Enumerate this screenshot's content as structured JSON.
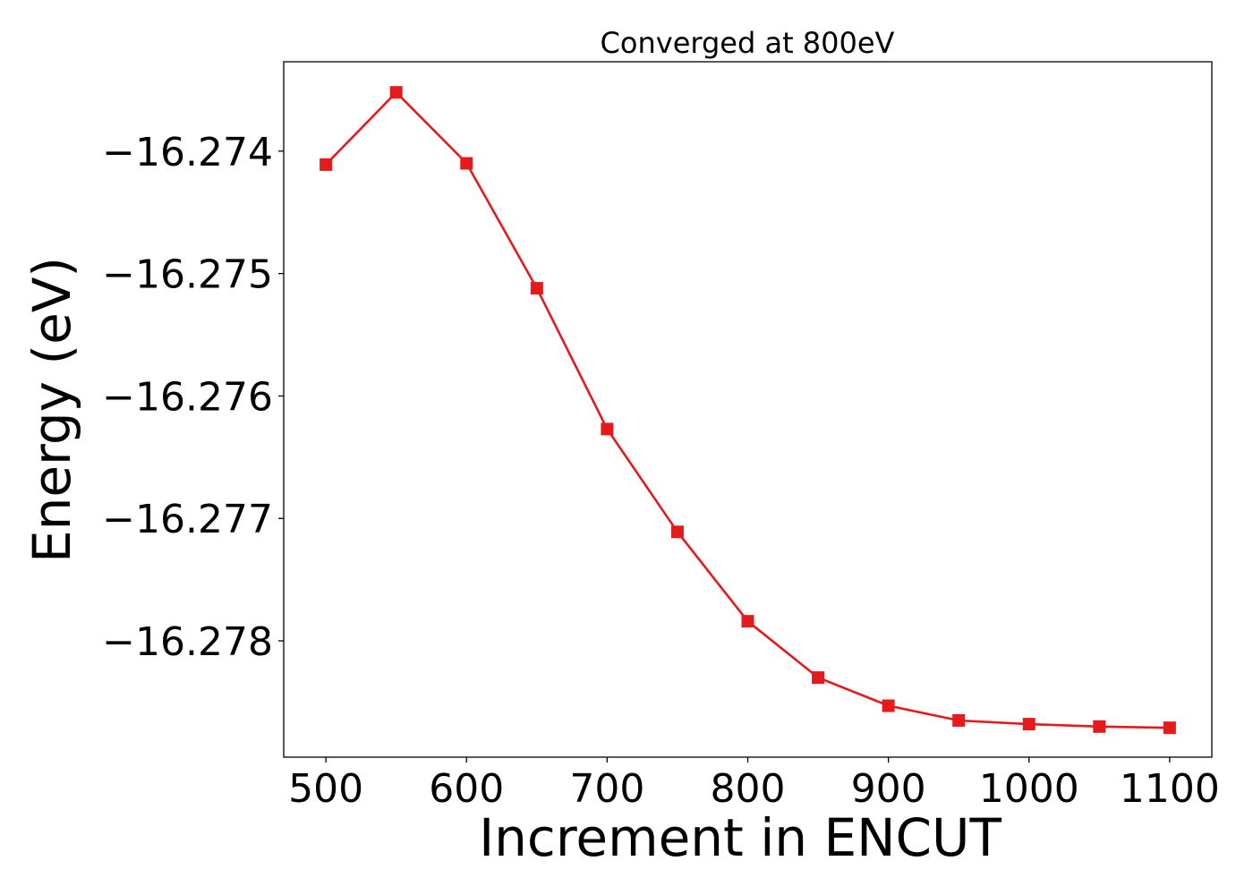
{
  "chart_data": {
    "type": "line",
    "title": "Converged at 800eV",
    "xlabel": "Increment in ENCUT",
    "ylabel": "Energy (eV)",
    "xlim": [
      470,
      1130
    ],
    "ylim": [
      -16.27895,
      -16.27327
    ],
    "x_ticks": [
      500,
      600,
      700,
      800,
      900,
      1000,
      1100
    ],
    "x_tick_labels": [
      "500",
      "600",
      "700",
      "800",
      "900",
      "1000",
      "1100"
    ],
    "y_ticks": [
      -16.274,
      -16.275,
      -16.276,
      -16.277,
      -16.278
    ],
    "y_tick_labels": [
      "−16.274",
      "−16.275",
      "−16.276",
      "−16.277",
      "−16.278"
    ],
    "grid": false,
    "series": [
      {
        "color": "#e41a1c",
        "marker": "square",
        "x": [
          500,
          550,
          600,
          650,
          700,
          750,
          800,
          850,
          900,
          950,
          1000,
          1050,
          1100
        ],
        "y": [
          -16.27411,
          -16.27352,
          -16.2741,
          -16.27512,
          -16.27627,
          -16.27711,
          -16.27784,
          -16.2783,
          -16.27853,
          -16.27865,
          -16.27868,
          -16.2787,
          -16.27871
        ]
      }
    ]
  }
}
